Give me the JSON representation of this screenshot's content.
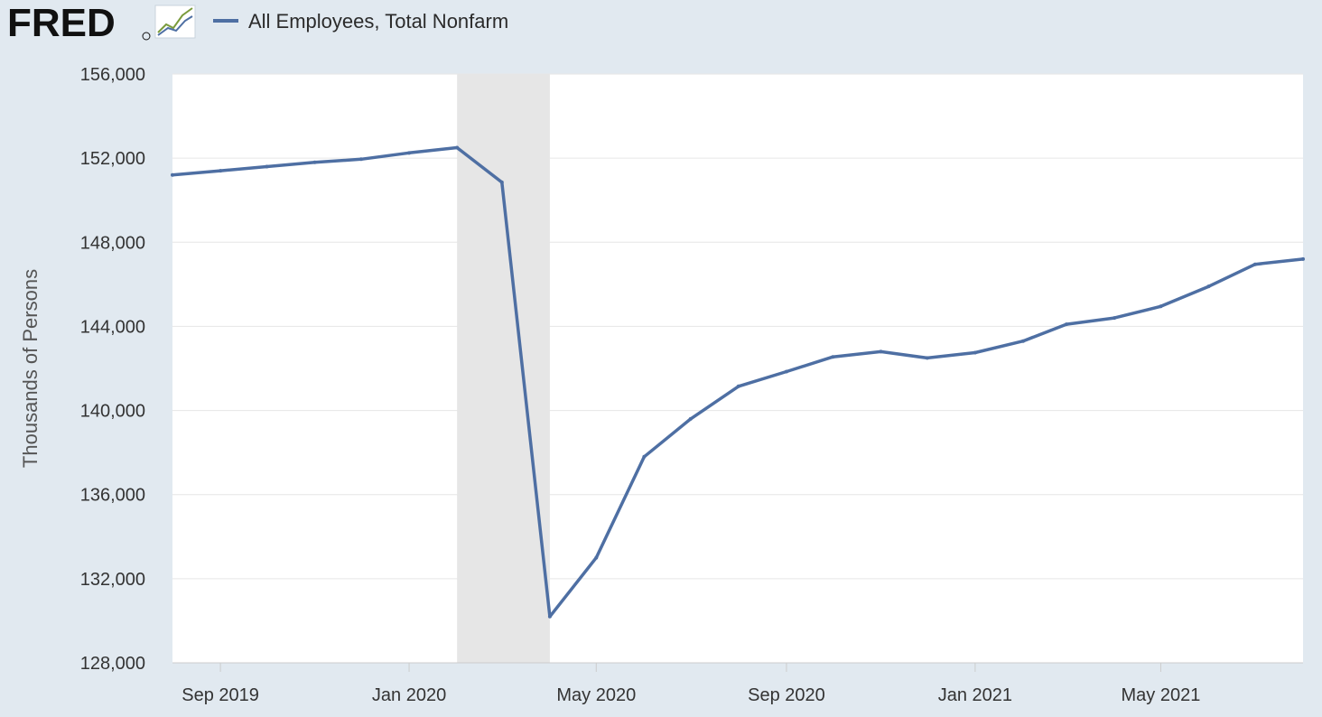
{
  "logo": {
    "text": "FRED",
    "mark": "registered-trademark",
    "icon": "line-graph-icon"
  },
  "legend": {
    "label": "All Employees, Total Nonfarm"
  },
  "colors": {
    "series": "#4e6fa3",
    "recession": "#e6e6e6",
    "plot_bg": "#ffffff",
    "page_bg": "#e1e9f0",
    "grid": "#e6e6e6"
  },
  "chart_data": {
    "type": "line",
    "ylabel": "Thousands of Persons",
    "ylim": [
      128000,
      156000
    ],
    "y_ticks": [
      "128,000",
      "132,000",
      "136,000",
      "140,000",
      "144,000",
      "148,000",
      "152,000",
      "156,000"
    ],
    "x_ticks": [
      "Sep 2019",
      "Jan 2020",
      "May 2020",
      "Sep 2020",
      "Jan 2021",
      "May 2021"
    ],
    "x_tick_dates": [
      "2019-09-01",
      "2020-01-01",
      "2020-05-01",
      "2020-09-01",
      "2021-01-01",
      "2021-05-01"
    ],
    "recession": {
      "start": "2020-02-01",
      "end": "2020-04-01"
    },
    "grid": true,
    "legend_position": "top-left",
    "series": [
      {
        "name": "All Employees, Total Nonfarm",
        "x": [
          "2019-08-01",
          "2019-09-01",
          "2019-10-01",
          "2019-11-01",
          "2019-12-01",
          "2020-01-01",
          "2020-02-01",
          "2020-03-01",
          "2020-04-01",
          "2020-05-01",
          "2020-06-01",
          "2020-07-01",
          "2020-08-01",
          "2020-09-01",
          "2020-10-01",
          "2020-11-01",
          "2020-12-01",
          "2021-01-01",
          "2021-02-01",
          "2021-03-01",
          "2021-04-01",
          "2021-05-01",
          "2021-06-01",
          "2021-07-01",
          "2021-08-01"
        ],
        "values": [
          151200,
          151400,
          151600,
          151800,
          151950,
          152250,
          152500,
          150850,
          130200,
          133000,
          137800,
          139600,
          141150,
          141850,
          142550,
          142800,
          142500,
          142750,
          143300,
          144100,
          144400,
          144950,
          145900,
          146950,
          147200
        ]
      }
    ]
  }
}
